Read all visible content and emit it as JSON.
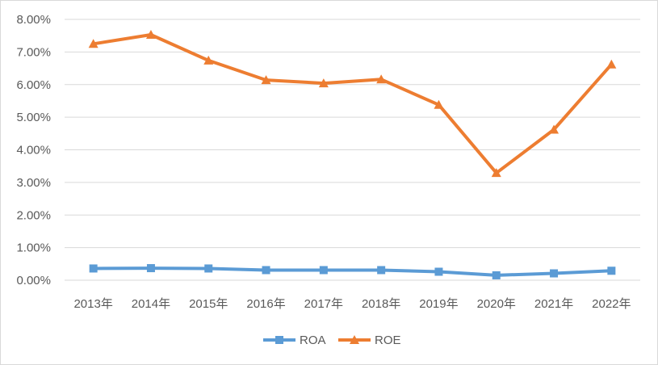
{
  "chart_data": {
    "type": "line",
    "title": "",
    "xlabel": "",
    "ylabel": "",
    "categories": [
      "2013年",
      "2014年",
      "2015年",
      "2016年",
      "2017年",
      "2018年",
      "2019年",
      "2020年",
      "2021年",
      "2022年"
    ],
    "y_ticks": [
      "0.00%",
      "1.00%",
      "2.00%",
      "3.00%",
      "4.00%",
      "5.00%",
      "6.00%",
      "7.00%",
      "8.00%"
    ],
    "ylim": [
      0,
      8
    ],
    "y_unit": "%",
    "grid": true,
    "legend_position": "bottom",
    "series": [
      {
        "name": "ROA",
        "color": "#5b9bd5",
        "marker": "square",
        "values": [
          0.36,
          0.37,
          0.36,
          0.31,
          0.31,
          0.31,
          0.26,
          0.15,
          0.21,
          0.29
        ]
      },
      {
        "name": "ROE",
        "color": "#ed7d31",
        "marker": "triangle",
        "values": [
          7.25,
          7.53,
          6.74,
          6.14,
          6.04,
          6.16,
          5.38,
          3.29,
          4.62,
          6.62
        ]
      }
    ]
  }
}
